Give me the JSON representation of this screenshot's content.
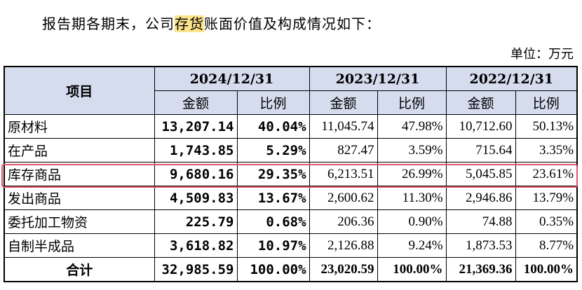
{
  "intro": {
    "before": "报告期各期末，公司",
    "highlight": "存货",
    "after": "账面价值及构成情况如下："
  },
  "unit": "单位：万元",
  "table": {
    "item_header": "项目",
    "periods": [
      "2024/12/31",
      "2023/12/31",
      "2022/12/31"
    ],
    "amount_label": "金额",
    "ratio_label": "比例",
    "rows": [
      {
        "name": "原材料",
        "v2024": "13,207.14",
        "r2024": "40.04%",
        "v2023": "11,045.74",
        "r2023": "47.98%",
        "v2022": "10,712.60",
        "r2022": "50.13%"
      },
      {
        "name": "在产品",
        "v2024": "1,743.85",
        "r2024": "5.29%",
        "v2023": "827.47",
        "r2023": "3.59%",
        "v2022": "715.64",
        "r2022": "3.35%"
      },
      {
        "name": "库存商品",
        "v2024": "9,680.16",
        "r2024": "29.35%",
        "v2023": "6,213.51",
        "r2023": "26.99%",
        "v2022": "5,045.85",
        "r2022": "23.61%"
      },
      {
        "name": "发出商品",
        "v2024": "4,509.83",
        "r2024": "13.67%",
        "v2023": "2,600.62",
        "r2023": "11.30%",
        "v2022": "2,946.86",
        "r2022": "13.79%"
      },
      {
        "name": "委托加工物资",
        "v2024": "225.79",
        "r2024": "0.68%",
        "v2023": "206.36",
        "r2023": "0.90%",
        "v2022": "74.88",
        "r2022": "0.35%"
      },
      {
        "name": "自制半成品",
        "v2024": "3,618.82",
        "r2024": "10.97%",
        "v2023": "2,126.88",
        "r2023": "9.24%",
        "v2022": "1,873.53",
        "r2022": "8.77%"
      }
    ],
    "total": {
      "name": "合计",
      "v2024": "32,985.59",
      "r2024": "100.00%",
      "v2023": "23,020.59",
      "r2023": "100.00%",
      "v2022": "21,369.36",
      "r2022": "100.00%"
    }
  },
  "colors": {
    "header_bg": "#d4dcee",
    "highlight": "#fbe38a",
    "row_box": "#e0566a"
  }
}
